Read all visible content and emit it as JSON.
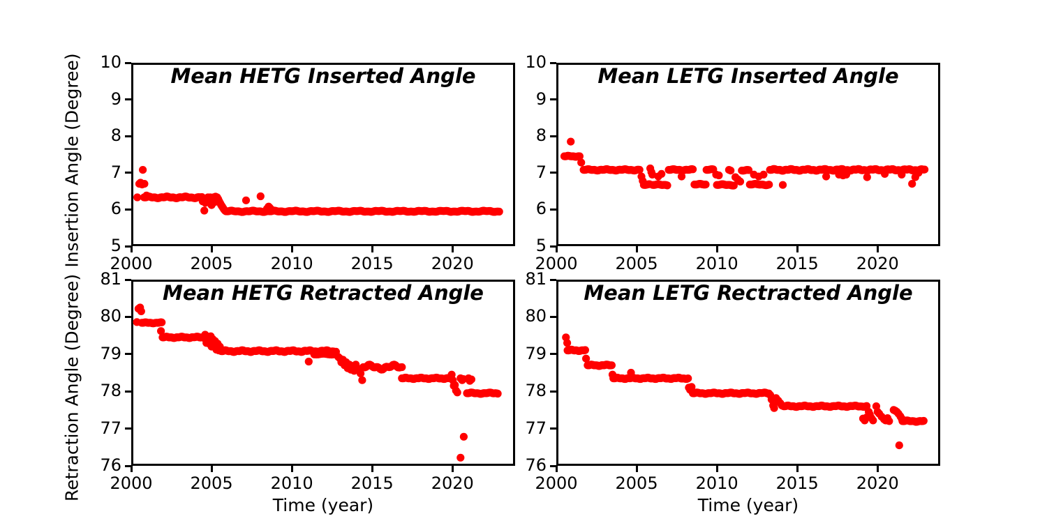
{
  "figure": {
    "background": "#ffffff",
    "axis_color": "#000000",
    "marker_color": "#ff0000"
  },
  "axis_labels": {
    "x_bottom": "Time (year)",
    "y_top": "Insertion Angle (Degree)",
    "y_bottom": "Retraction Angle (Degree)"
  },
  "chart_data": [
    {
      "id": "hetg-inserted",
      "type": "scatter",
      "title": "Mean HETG Inserted Angle",
      "xlabel": "",
      "ylabel": "Insertion Angle (Degree)",
      "xlim": [
        2000,
        2023.9
      ],
      "ylim": [
        5,
        10
      ],
      "xticks": [
        2000,
        2005,
        2010,
        2015,
        2020
      ],
      "yticks": [
        5,
        6,
        7,
        8,
        9,
        10
      ],
      "grid": false,
      "legend": null,
      "segments": [
        {
          "x0": 2000.8,
          "x1": 2004.4,
          "y": 6.33,
          "step": 0.06,
          "jy": 0.025
        },
        {
          "x0": 2005.9,
          "x1": 2022.95,
          "y": 5.95,
          "step": 0.07,
          "jy": 0.02
        }
      ],
      "points": [
        [
          2000.38,
          6.33
        ],
        [
          2000.5,
          6.7
        ],
        [
          2000.58,
          6.73
        ],
        [
          2000.68,
          6.68
        ],
        [
          2000.72,
          7.08
        ],
        [
          2000.82,
          6.7
        ],
        [
          2000.95,
          6.38
        ],
        [
          2004.45,
          6.22
        ],
        [
          2004.5,
          6.3
        ],
        [
          2004.55,
          5.97
        ],
        [
          2004.62,
          6.18
        ],
        [
          2004.7,
          6.3
        ],
        [
          2004.78,
          6.33
        ],
        [
          2004.85,
          6.25
        ],
        [
          2004.92,
          6.33
        ],
        [
          2005.0,
          6.12
        ],
        [
          2005.05,
          6.3
        ],
        [
          2005.12,
          6.33
        ],
        [
          2005.18,
          6.2
        ],
        [
          2005.25,
          6.35
        ],
        [
          2005.3,
          6.3
        ],
        [
          2005.35,
          6.33
        ],
        [
          2005.42,
          6.28
        ],
        [
          2005.48,
          6.22
        ],
        [
          2005.54,
          6.17
        ],
        [
          2005.6,
          6.12
        ],
        [
          2005.66,
          6.08
        ],
        [
          2005.72,
          6.04
        ],
        [
          2005.78,
          6.0
        ],
        [
          2005.84,
          5.97
        ],
        [
          2007.15,
          6.25
        ],
        [
          2008.05,
          6.36
        ],
        [
          2008.45,
          6.02
        ],
        [
          2008.55,
          6.08
        ],
        [
          2008.62,
          6.05
        ],
        [
          2008.72,
          6.0
        ]
      ]
    },
    {
      "id": "letg-inserted",
      "type": "scatter",
      "title": "Mean LETG Inserted Angle",
      "xlabel": "",
      "ylabel": "",
      "xlim": [
        2000,
        2023.9
      ],
      "ylim": [
        5,
        10
      ],
      "xticks": [
        2000,
        2005,
        2010,
        2015,
        2020
      ],
      "yticks": [
        5,
        6,
        7,
        8,
        9,
        10
      ],
      "grid": false,
      "legend": null,
      "segments": [
        {
          "x0": 2000.5,
          "x1": 2001.45,
          "y": 7.45,
          "step": 0.05,
          "jy": 0.015
        },
        {
          "x0": 2001.7,
          "x1": 2005.2,
          "y": 7.08,
          "step": 0.06,
          "jy": 0.02
        },
        {
          "x0": 2005.45,
          "x1": 2005.8,
          "y": 6.67,
          "step": 0.07,
          "jy": 0.02
        },
        {
          "x0": 2006.0,
          "x1": 2006.95,
          "y": 6.67,
          "step": 0.07,
          "jy": 0.02
        },
        {
          "x0": 2007.0,
          "x1": 2008.55,
          "y": 7.08,
          "step": 0.06,
          "jy": 0.02
        },
        {
          "x0": 2008.6,
          "x1": 2009.3,
          "y": 6.68,
          "step": 0.07,
          "jy": 0.02
        },
        {
          "x0": 2009.35,
          "x1": 2009.8,
          "y": 7.08,
          "step": 0.07,
          "jy": 0.02
        },
        {
          "x0": 2010.0,
          "x1": 2011.05,
          "y": 6.67,
          "step": 0.07,
          "jy": 0.02
        },
        {
          "x0": 2011.55,
          "x1": 2012.0,
          "y": 7.06,
          "step": 0.07,
          "jy": 0.02
        },
        {
          "x0": 2012.05,
          "x1": 2013.25,
          "y": 6.68,
          "step": 0.07,
          "jy": 0.02
        },
        {
          "x0": 2013.3,
          "x1": 2022.95,
          "y": 7.08,
          "step": 0.055,
          "jy": 0.025
        }
      ],
      "points": [
        [
          2000.9,
          7.85
        ],
        [
          2001.55,
          7.28
        ],
        [
          2005.3,
          6.9
        ],
        [
          2005.38,
          6.78
        ],
        [
          2005.85,
          7.12
        ],
        [
          2005.92,
          7.02
        ],
        [
          2005.98,
          6.95
        ],
        [
          2006.35,
          6.9
        ],
        [
          2006.55,
          6.97
        ],
        [
          2007.8,
          6.9
        ],
        [
          2009.95,
          6.95
        ],
        [
          2010.12,
          6.93
        ],
        [
          2010.75,
          7.08
        ],
        [
          2010.85,
          7.06
        ],
        [
          2011.15,
          6.88
        ],
        [
          2011.3,
          6.82
        ],
        [
          2011.45,
          6.76
        ],
        [
          2012.3,
          6.95
        ],
        [
          2012.6,
          6.9
        ],
        [
          2012.9,
          6.95
        ],
        [
          2014.1,
          6.67
        ],
        [
          2016.8,
          6.9
        ],
        [
          2017.6,
          6.95
        ],
        [
          2017.85,
          6.93
        ],
        [
          2018.05,
          6.95
        ],
        [
          2019.35,
          6.88
        ],
        [
          2020.45,
          6.97
        ],
        [
          2021.5,
          6.95
        ],
        [
          2022.15,
          6.7
        ],
        [
          2022.35,
          6.88
        ],
        [
          2022.55,
          7.0
        ]
      ]
    },
    {
      "id": "hetg-retracted",
      "type": "scatter",
      "title": "Mean HETG Retracted Angle",
      "xlabel": "Time (year)",
      "ylabel": "Retraction Angle (Degree)",
      "xlim": [
        2000,
        2023.9
      ],
      "ylim": [
        76,
        81
      ],
      "xticks": [
        2000,
        2005,
        2010,
        2015,
        2020
      ],
      "yticks": [
        76,
        77,
        78,
        79,
        80,
        81
      ],
      "grid": false,
      "legend": null,
      "segments": [
        {
          "x0": 2000.65,
          "x1": 2001.9,
          "y": 79.84,
          "step": 0.05,
          "jy": 0.015
        },
        {
          "x0": 2001.95,
          "x1": 2004.55,
          "y": 79.45,
          "step": 0.05,
          "jy": 0.02
        },
        {
          "x0": 2005.6,
          "x1": 2012.8,
          "y": 79.08,
          "step": 0.055,
          "jy": 0.025
        },
        {
          "x0": 2011.4,
          "x1": 2012.8,
          "y": 78.99,
          "step": 0.12,
          "jy": 0.02
        },
        {
          "x0": 2014.45,
          "x1": 2016.9,
          "y": 78.65,
          "step": 0.08,
          "jy": 0.07
        },
        {
          "x0": 2016.85,
          "x1": 2019.9,
          "y": 78.35,
          "step": 0.05,
          "jy": 0.02
        },
        {
          "x0": 2020.9,
          "x1": 2022.85,
          "y": 77.95,
          "step": 0.06,
          "jy": 0.02
        }
      ],
      "points": [
        [
          2000.35,
          79.86
        ],
        [
          2000.45,
          80.22
        ],
        [
          2000.55,
          80.25
        ],
        [
          2000.62,
          80.15
        ],
        [
          2001.85,
          79.62
        ],
        [
          2004.6,
          79.52
        ],
        [
          2004.68,
          79.3
        ],
        [
          2004.75,
          79.45
        ],
        [
          2004.85,
          79.28
        ],
        [
          2004.95,
          79.48
        ],
        [
          2005.0,
          79.2
        ],
        [
          2005.08,
          79.4
        ],
        [
          2005.15,
          79.22
        ],
        [
          2005.22,
          79.35
        ],
        [
          2005.3,
          79.12
        ],
        [
          2005.38,
          79.28
        ],
        [
          2005.45,
          79.1
        ],
        [
          2005.52,
          79.2
        ],
        [
          2011.05,
          78.8
        ],
        [
          2012.9,
          78.92
        ],
        [
          2013.0,
          78.88
        ],
        [
          2013.08,
          78.78
        ],
        [
          2013.18,
          78.85
        ],
        [
          2013.28,
          78.7
        ],
        [
          2013.38,
          78.78
        ],
        [
          2013.48,
          78.62
        ],
        [
          2013.58,
          78.72
        ],
        [
          2013.68,
          78.58
        ],
        [
          2013.78,
          78.68
        ],
        [
          2013.88,
          78.55
        ],
        [
          2013.98,
          78.72
        ],
        [
          2014.08,
          78.62
        ],
        [
          2014.18,
          78.55
        ],
        [
          2014.28,
          78.48
        ],
        [
          2014.38,
          78.3
        ],
        [
          2019.95,
          78.45
        ],
        [
          2020.02,
          78.3
        ],
        [
          2020.08,
          78.15
        ],
        [
          2020.15,
          78.17
        ],
        [
          2020.22,
          78.02
        ],
        [
          2020.3,
          77.97
        ],
        [
          2020.5,
          78.35
        ],
        [
          2020.6,
          78.3
        ],
        [
          2020.68,
          78.33
        ],
        [
          2021.0,
          78.35
        ],
        [
          2021.08,
          78.28
        ],
        [
          2021.18,
          78.32
        ],
        [
          2020.5,
          76.22
        ],
        [
          2020.7,
          76.78
        ]
      ]
    },
    {
      "id": "letg-retracted",
      "type": "scatter",
      "title": "Mean LETG Rectracted Angle",
      "xlabel": "Time (year)",
      "ylabel": "",
      "xlim": [
        2000,
        2023.9
      ],
      "ylim": [
        76,
        81
      ],
      "xticks": [
        2000,
        2005,
        2010,
        2015,
        2020
      ],
      "yticks": [
        76,
        77,
        78,
        79,
        80,
        81
      ],
      "grid": false,
      "legend": null,
      "segments": [
        {
          "x0": 2000.7,
          "x1": 2001.8,
          "y": 79.1,
          "step": 0.05,
          "jy": 0.02
        },
        {
          "x0": 2001.95,
          "x1": 2003.45,
          "y": 78.7,
          "step": 0.05,
          "jy": 0.02
        },
        {
          "x0": 2003.55,
          "x1": 2008.2,
          "y": 78.35,
          "step": 0.05,
          "jy": 0.02
        },
        {
          "x0": 2008.5,
          "x1": 2013.25,
          "y": 77.95,
          "step": 0.055,
          "jy": 0.02
        },
        {
          "x0": 2014.15,
          "x1": 2019.35,
          "y": 77.6,
          "step": 0.055,
          "jy": 0.02
        },
        {
          "x0": 2021.55,
          "x1": 2022.9,
          "y": 77.2,
          "step": 0.06,
          "jy": 0.02
        }
      ],
      "points": [
        [
          2000.6,
          79.45
        ],
        [
          2000.68,
          79.3
        ],
        [
          2001.85,
          78.88
        ],
        [
          2003.5,
          78.45
        ],
        [
          2004.65,
          78.5
        ],
        [
          2008.25,
          78.1
        ],
        [
          2008.33,
          78.04
        ],
        [
          2008.42,
          78.12
        ],
        [
          2013.32,
          77.9
        ],
        [
          2013.4,
          77.78
        ],
        [
          2013.5,
          77.62
        ],
        [
          2013.56,
          77.55
        ],
        [
          2013.68,
          77.82
        ],
        [
          2013.82,
          77.75
        ],
        [
          2013.95,
          77.68
        ],
        [
          2014.05,
          77.62
        ],
        [
          2019.1,
          77.27
        ],
        [
          2019.2,
          77.22
        ],
        [
          2019.32,
          77.3
        ],
        [
          2019.45,
          77.45
        ],
        [
          2019.52,
          77.38
        ],
        [
          2019.62,
          77.28
        ],
        [
          2019.72,
          77.22
        ],
        [
          2019.92,
          77.6
        ],
        [
          2020.0,
          77.45
        ],
        [
          2020.1,
          77.4
        ],
        [
          2020.25,
          77.32
        ],
        [
          2020.4,
          77.25
        ],
        [
          2020.5,
          77.22
        ],
        [
          2020.62,
          77.28
        ],
        [
          2020.72,
          77.2
        ],
        [
          2021.0,
          77.5
        ],
        [
          2021.1,
          77.48
        ],
        [
          2021.2,
          77.45
        ],
        [
          2021.3,
          77.4
        ],
        [
          2021.42,
          77.33
        ],
        [
          2021.5,
          77.27
        ],
        [
          2021.35,
          76.55
        ]
      ]
    }
  ]
}
